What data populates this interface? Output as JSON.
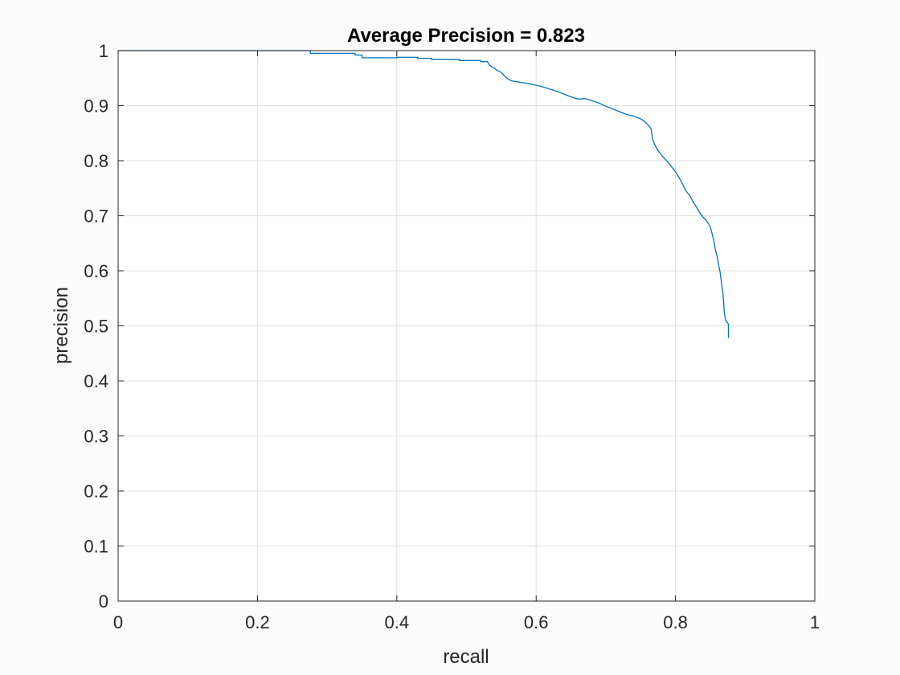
{
  "figure": {
    "background_color": "#fbfbfb",
    "axes_background_color": "#ffffff"
  },
  "chart_data": {
    "type": "line",
    "title": "Average Precision = 0.823",
    "xlabel": "recall",
    "ylabel": "precision",
    "xlim": [
      0,
      1
    ],
    "ylim": [
      0,
      1
    ],
    "xticks": [
      0,
      0.2,
      0.4,
      0.6,
      0.8,
      1
    ],
    "yticks": [
      0,
      0.1,
      0.2,
      0.3,
      0.4,
      0.5,
      0.6,
      0.7,
      0.8,
      0.9,
      1
    ],
    "xtick_labels": [
      "0",
      "0.2",
      "0.4",
      "0.6",
      "0.8",
      "1"
    ],
    "ytick_labels": [
      "0",
      "0.1",
      "0.2",
      "0.3",
      "0.4",
      "0.5",
      "0.6",
      "0.7",
      "0.8",
      "0.9",
      "1"
    ],
    "grid": true,
    "box": true,
    "line_color": "#0072bd",
    "series": [
      {
        "x": [
          0.0,
          0.276,
          0.276,
          0.3,
          0.34,
          0.34,
          0.35,
          0.35,
          0.4,
          0.4,
          0.43,
          0.43,
          0.45,
          0.45,
          0.49,
          0.49,
          0.52,
          0.52,
          0.53,
          0.533,
          0.537,
          0.54,
          0.544,
          0.548,
          0.552,
          0.556,
          0.56,
          0.565,
          0.57,
          0.575,
          0.58,
          0.59,
          0.6,
          0.61,
          0.62,
          0.63,
          0.64,
          0.65,
          0.66,
          0.67,
          0.68,
          0.69,
          0.7,
          0.71,
          0.72,
          0.73,
          0.74,
          0.75,
          0.755,
          0.76,
          0.765,
          0.767,
          0.77,
          0.775,
          0.78,
          0.785,
          0.79,
          0.795,
          0.8,
          0.805,
          0.81,
          0.815,
          0.82,
          0.825,
          0.83,
          0.835,
          0.84,
          0.845,
          0.85,
          0.852,
          0.855,
          0.857,
          0.86,
          0.862,
          0.864,
          0.866,
          0.868,
          0.869,
          0.87,
          0.872,
          0.876,
          0.876
        ],
        "y": [
          1.0,
          1.0,
          0.995,
          0.995,
          0.995,
          0.992,
          0.992,
          0.987,
          0.987,
          0.988,
          0.988,
          0.986,
          0.986,
          0.984,
          0.984,
          0.982,
          0.982,
          0.98,
          0.98,
          0.974,
          0.97,
          0.968,
          0.964,
          0.962,
          0.958,
          0.952,
          0.948,
          0.945,
          0.944,
          0.943,
          0.942,
          0.94,
          0.937,
          0.934,
          0.93,
          0.926,
          0.921,
          0.916,
          0.912,
          0.913,
          0.909,
          0.905,
          0.899,
          0.894,
          0.889,
          0.884,
          0.881,
          0.876,
          0.872,
          0.866,
          0.858,
          0.84,
          0.83,
          0.818,
          0.81,
          0.803,
          0.796,
          0.788,
          0.78,
          0.77,
          0.758,
          0.745,
          0.738,
          0.726,
          0.716,
          0.705,
          0.697,
          0.69,
          0.68,
          0.67,
          0.655,
          0.64,
          0.625,
          0.61,
          0.598,
          0.578,
          0.56,
          0.545,
          0.525,
          0.51,
          0.503,
          0.478
        ]
      }
    ]
  }
}
